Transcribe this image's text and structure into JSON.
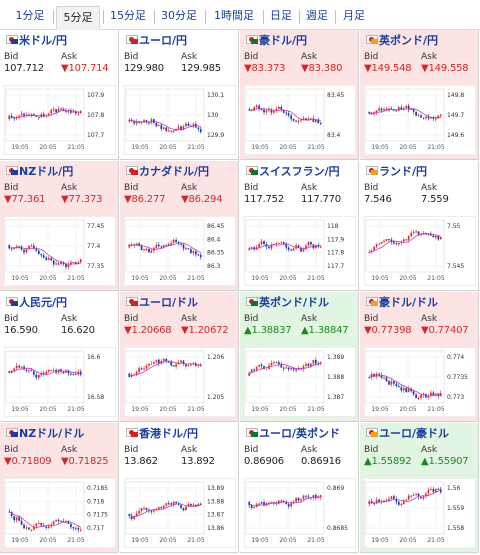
{
  "tabs": [
    "1分足",
    "5分足",
    "15分足",
    "30分足",
    "1時間足",
    "日足",
    "週足",
    "月足"
  ],
  "active_tab": 1,
  "labels": {
    "bid": "Bid",
    "ask": "Ask"
  },
  "x_ticks": [
    "19:05",
    "20:05",
    "21:05"
  ],
  "colors": {
    "down_bg": "#fde4e4",
    "up_bg": "#e2f5e2",
    "down_text": "#d42828",
    "up_text": "#1a8a1a",
    "bull_candle": "#e03030",
    "bear_candle": "#1f3fa8",
    "ma_line": "#c040c0"
  },
  "pairs": [
    {
      "name": "米ドル/円",
      "bid": "107.712",
      "ask": "▼107.714",
      "bid_dir": "none",
      "ask_dir": "down",
      "bg": "none",
      "flag": "us-jp-flag-icon",
      "y_ticks": [
        "107.9",
        "107.8",
        "107.7"
      ]
    },
    {
      "name": "ユーロ/円",
      "bid": "129.980",
      "ask": "129.985",
      "bid_dir": "none",
      "ask_dir": "none",
      "bg": "none",
      "flag": "eu-jp-flag-icon",
      "y_ticks": [
        "130.1",
        "130",
        "129.9"
      ]
    },
    {
      "name": "豪ドル/円",
      "bid": "▼83.373",
      "ask": "▼83.380",
      "bid_dir": "down",
      "ask_dir": "down",
      "bg": "down",
      "flag": "au-jp-flag-icon",
      "y_ticks": [
        "83.45",
        "83.4"
      ]
    },
    {
      "name": "英ポンド/円",
      "bid": "▼149.548",
      "ask": "▼149.558",
      "bid_dir": "down",
      "ask_dir": "down",
      "bg": "down",
      "flag": "gb-jp-flag-icon",
      "y_ticks": [
        "149.8",
        "149.7",
        "149.6"
      ]
    },
    {
      "name": "NZドル/円",
      "bid": "▼77.361",
      "ask": "▼77.373",
      "bid_dir": "down",
      "ask_dir": "down",
      "bg": "down",
      "flag": "nz-jp-flag-icon",
      "y_ticks": [
        "77.45",
        "77.4",
        "77.35"
      ]
    },
    {
      "name": "カナダドル/円",
      "bid": "▼86.277",
      "ask": "▼86.294",
      "bid_dir": "down",
      "ask_dir": "down",
      "bg": "down",
      "flag": "ca-jp-flag-icon",
      "y_ticks": [
        "86.45",
        "86.4",
        "86.35",
        "86.3"
      ]
    },
    {
      "name": "スイスフラン/円",
      "bid": "117.752",
      "ask": "117.770",
      "bid_dir": "none",
      "ask_dir": "none",
      "bg": "none",
      "flag": "ch-jp-flag-icon",
      "y_ticks": [
        "118",
        "117.9",
        "117.8",
        "117.7"
      ]
    },
    {
      "name": "ランド/円",
      "bid": "7.546",
      "ask": "7.559",
      "bid_dir": "none",
      "ask_dir": "none",
      "bg": "none",
      "flag": "za-jp-flag-icon",
      "y_ticks": [
        "7.55",
        "7.545"
      ]
    },
    {
      "name": "人民元/円",
      "bid": "16.590",
      "ask": "16.620",
      "bid_dir": "none",
      "ask_dir": "none",
      "bg": "none",
      "flag": "cn-jp-flag-icon",
      "y_ticks": [
        "16.6",
        "16.58"
      ]
    },
    {
      "name": "ユーロ/ドル",
      "bid": "▼1.20668",
      "ask": "▼1.20672",
      "bid_dir": "down",
      "ask_dir": "down",
      "bg": "down",
      "flag": "eu-us-flag-icon",
      "y_ticks": [
        "1.206",
        "1.205"
      ]
    },
    {
      "name": "英ポンド/ドル",
      "bid": "▲1.38837",
      "ask": "▲1.38847",
      "bid_dir": "up",
      "ask_dir": "up",
      "bg": "up",
      "flag": "gb-us-flag-icon",
      "y_ticks": [
        "1.389",
        "1.388",
        "1.387"
      ]
    },
    {
      "name": "豪ドル/ドル",
      "bid": "▼0.77398",
      "ask": "▼0.77407",
      "bid_dir": "down",
      "ask_dir": "down",
      "bg": "down",
      "flag": "au-us-flag-icon",
      "y_ticks": [
        "0.774",
        "0.7735",
        "0.773"
      ]
    },
    {
      "name": "NZドル/ドル",
      "bid": "▼0.71809",
      "ask": "▼0.71825",
      "bid_dir": "down",
      "ask_dir": "down",
      "bg": "down",
      "flag": "nz-us-flag-icon",
      "y_ticks": [
        "0.7185",
        "0.718",
        "0.7175",
        "0.717"
      ]
    },
    {
      "name": "香港ドル/円",
      "bid": "13.862",
      "ask": "13.892",
      "bid_dir": "none",
      "ask_dir": "none",
      "bg": "none",
      "flag": "hk-jp-flag-icon",
      "y_ticks": [
        "13.89",
        "13.88",
        "13.87",
        "13.86"
      ]
    },
    {
      "name": "ユーロ/英ポンド",
      "bid": "0.86906",
      "ask": "0.86916",
      "bid_dir": "none",
      "ask_dir": "none",
      "bg": "none",
      "flag": "eu-gb-flag-icon",
      "y_ticks": [
        "0.869",
        "0.8685"
      ]
    },
    {
      "name": "ユーロ/豪ドル",
      "bid": "▲1.55892",
      "ask": "▲1.55907",
      "bid_dir": "up",
      "ask_dir": "up",
      "bg": "up",
      "flag": "eu-au-flag-icon",
      "y_ticks": [
        "1.56",
        "1.559",
        "1.558"
      ]
    }
  ]
}
